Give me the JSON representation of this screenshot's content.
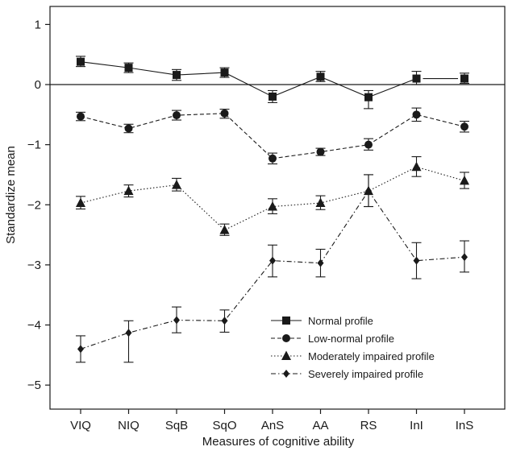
{
  "chart_data": {
    "type": "line",
    "xlabel": "Measures of cognitive ability",
    "ylabel": "Standardize mean",
    "categories": [
      "VIQ",
      "NIQ",
      "SqB",
      "SqO",
      "AnS",
      "AA",
      "RS",
      "InI",
      "InS"
    ],
    "ylim": [
      -5.4,
      1.3
    ],
    "yticks": [
      1,
      0,
      -1,
      -2,
      -3,
      -4,
      -5
    ],
    "ytick_labels": [
      "1",
      "0",
      "−1",
      "−2",
      "−3",
      "−4",
      "−5"
    ],
    "reference_line": 0,
    "grid": false,
    "legend_position": "bottom-right",
    "series": [
      {
        "name": "Normal profile",
        "marker": "square",
        "dash": "solid",
        "break_after_index": 7,
        "values": [
          0.38,
          0.28,
          0.16,
          0.2,
          -0.2,
          0.13,
          -0.21,
          0.1,
          0.1
        ],
        "err_low": [
          0.3,
          0.2,
          0.07,
          0.12,
          -0.3,
          0.05,
          -0.4,
          0.0,
          0.02
        ],
        "err_high": [
          0.47,
          0.36,
          0.25,
          0.28,
          -0.1,
          0.22,
          -0.1,
          0.22,
          0.19
        ]
      },
      {
        "name": "Low-normal profile",
        "marker": "circle",
        "dash": "dashed",
        "values": [
          -0.53,
          -0.73,
          -0.51,
          -0.48,
          -1.23,
          -1.12,
          -1.0,
          -0.5,
          -0.7
        ],
        "err_low": [
          -0.6,
          -0.8,
          -0.59,
          -0.56,
          -1.32,
          -1.18,
          -1.09,
          -0.61,
          -0.79
        ],
        "err_high": [
          -0.46,
          -0.66,
          -0.43,
          -0.41,
          -1.14,
          -1.06,
          -0.9,
          -0.39,
          -0.61
        ]
      },
      {
        "name": "Moderately impaired profile",
        "marker": "triangle",
        "dash": "dotted",
        "values": [
          -1.97,
          -1.77,
          -1.67,
          -2.42,
          -2.03,
          -1.97,
          -1.77,
          -1.37,
          -1.6
        ],
        "err_low": [
          -2.07,
          -1.87,
          -1.77,
          -2.51,
          -2.15,
          -2.08,
          -2.03,
          -1.53,
          -1.73
        ],
        "err_high": [
          -1.86,
          -1.67,
          -1.56,
          -2.32,
          -1.9,
          -1.85,
          -1.5,
          -1.2,
          -1.46
        ]
      },
      {
        "name": "Severely impaired profile",
        "marker": "diamond",
        "dash": "dashdot",
        "values": [
          -4.4,
          -4.13,
          -3.92,
          -3.93,
          -2.93,
          -2.97,
          -1.77,
          -2.93,
          -2.87
        ],
        "err_low": [
          -4.62,
          -4.62,
          -4.13,
          -4.12,
          -3.2,
          -3.2,
          -2.03,
          -3.23,
          -3.12
        ],
        "err_high": [
          -4.18,
          -3.93,
          -3.7,
          -3.75,
          -2.67,
          -2.74,
          -1.5,
          -2.63,
          -2.6
        ]
      }
    ]
  }
}
